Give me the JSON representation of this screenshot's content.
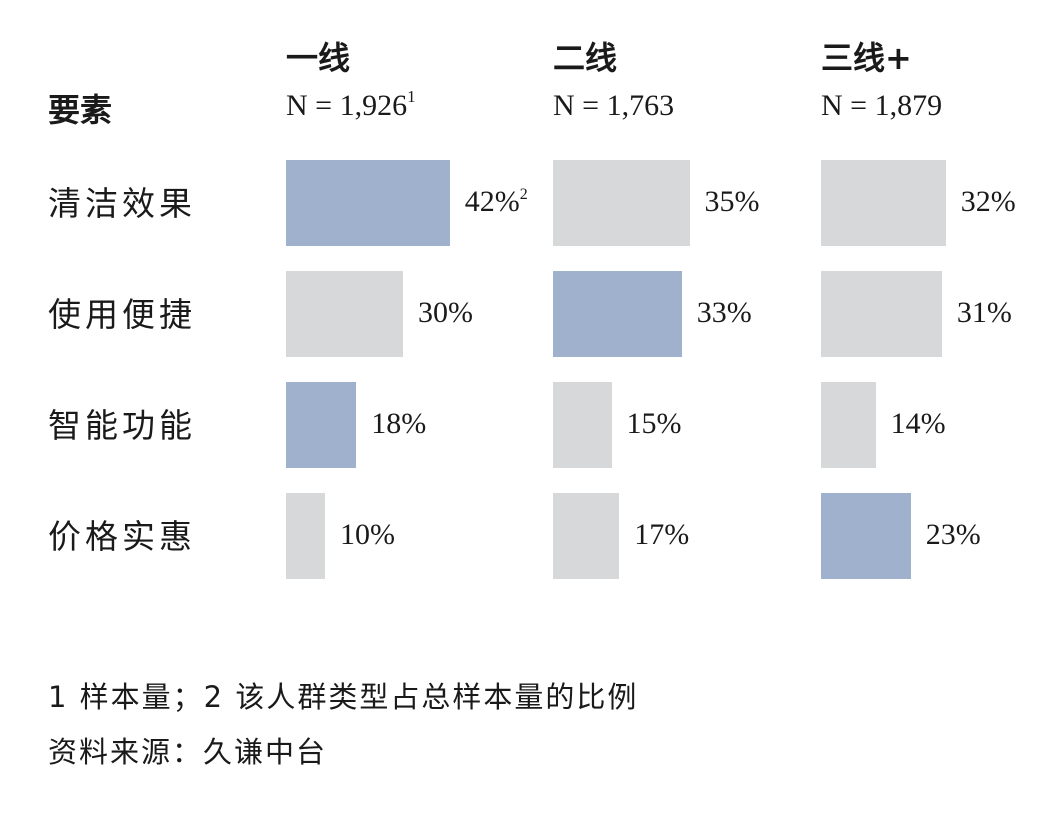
{
  "colors": {
    "highlight": "#9fb1cc",
    "neutral": "#d6d8da",
    "text": "#1a1a1a"
  },
  "header": {
    "row_header": "要素"
  },
  "chart_data": {
    "type": "bar",
    "orientation": "horizontal",
    "categories": [
      "清洁效果",
      "使用便捷",
      "智能功能",
      "价格实惠"
    ],
    "series": [
      {
        "name": "一线",
        "n_label": "N = 1,926",
        "n_note": "1",
        "values": [
          42,
          30,
          18,
          10
        ],
        "labels": [
          "42%",
          "30%",
          "18%",
          "10%"
        ],
        "highlight": [
          true,
          false,
          true,
          false
        ]
      },
      {
        "name": "二线",
        "n_label": "N = 1,763",
        "n_note": "",
        "values": [
          35,
          33,
          15,
          17
        ],
        "labels": [
          "35%",
          "33%",
          "15%",
          "17%"
        ],
        "highlight": [
          false,
          true,
          false,
          false
        ]
      },
      {
        "name": "三线+",
        "n_label": "N = 1,879",
        "n_note": "",
        "values": [
          32,
          31,
          14,
          23
        ],
        "labels": [
          "32%",
          "31%",
          "14%",
          "23%"
        ],
        "highlight": [
          false,
          false,
          false,
          true
        ]
      }
    ],
    "first_value_note": "2",
    "unit": "%"
  },
  "footnotes": {
    "note": "1 样本量；2 该人群类型占总样本量的比例",
    "source": "资料来源：久谦中台"
  }
}
